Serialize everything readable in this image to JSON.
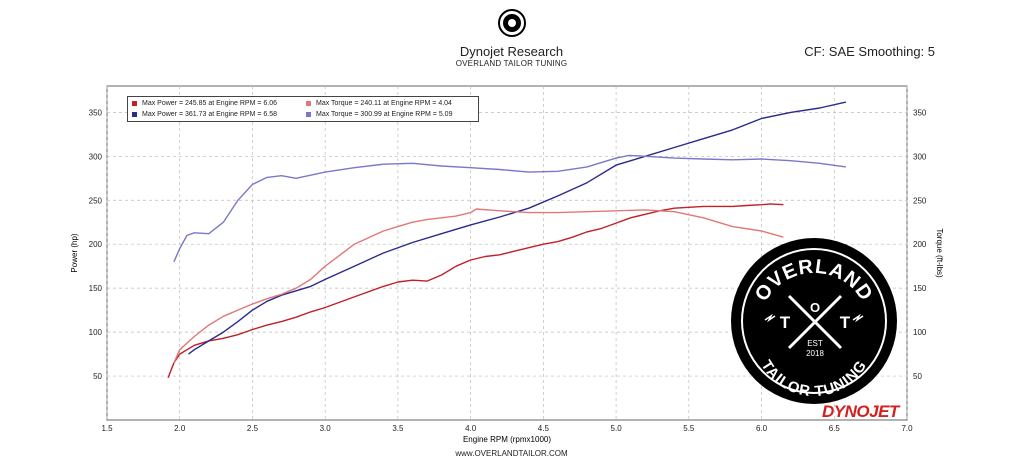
{
  "header": {
    "title": "Dynojet Research",
    "subtitle": "OVERLAND TAILOR TUNING",
    "cf_text": "CF: SAE Smoothing: 5"
  },
  "footer": {
    "url": "www.OVERLANDTAILOR.COM"
  },
  "brand": {
    "text": "DYNOJET"
  },
  "badge": {
    "top_text": "OVERLAND",
    "bottom_text": "TAILOR TUNING",
    "est_text": "EST",
    "year_text": "2018",
    "t_left": "T",
    "o_mid": "O",
    "t_right": "T",
    "colors": {
      "bg": "#000000",
      "ring": "#ffffff",
      "text": "#ffffff"
    }
  },
  "colors": {
    "power_run1": "#c0202a",
    "power_run2": "#2a2a8c",
    "torque_run1": "#e07878",
    "torque_run2": "#7a78c8",
    "grid": "#bbbbbb",
    "brand_red": "#d41f1f"
  },
  "legend": [
    {
      "text": "Max Power = 245.85 at Engine RPM = 6.06",
      "color": "#c0202a"
    },
    {
      "text": "Max Torque = 240.11 at Engine RPM = 4.04",
      "color": "#e07878"
    },
    {
      "text": "Max Power = 361.73 at Engine RPM = 6.58",
      "color": "#2a2a8c"
    },
    {
      "text": "Max Torque = 300.99 at Engine RPM = 5.09",
      "color": "#7a78c8"
    }
  ],
  "chart_data": {
    "type": "line",
    "title": "Dynojet Research",
    "xlabel": "Engine RPM (rpmx1000)",
    "ylabel": "Power (hp)",
    "y2label": "Torque (ft-lbs)",
    "xlim": [
      1.5,
      7.0
    ],
    "ylim": [
      0,
      380
    ],
    "y2lim": [
      0,
      380
    ],
    "xticks": [
      "1.5",
      "2.0",
      "2.5",
      "3.0",
      "3.5",
      "4.0",
      "4.5",
      "5.0",
      "5.5",
      "6.0",
      "6.5",
      "7.0"
    ],
    "yticks": [
      "50",
      "100",
      "150",
      "200",
      "250",
      "300",
      "350"
    ],
    "grid": true,
    "legend_position": "top-left",
    "series": [
      {
        "kind": "power",
        "axis": "left",
        "color": "#c0202a",
        "x": [
          1.92,
          1.96,
          2.0,
          2.1,
          2.2,
          2.3,
          2.4,
          2.5,
          2.6,
          2.7,
          2.8,
          2.9,
          3.0,
          3.2,
          3.4,
          3.5,
          3.6,
          3.7,
          3.8,
          3.9,
          4.0,
          4.1,
          4.2,
          4.3,
          4.4,
          4.5,
          4.6,
          4.7,
          4.8,
          4.9,
          5.0,
          5.1,
          5.2,
          5.3,
          5.4,
          5.5,
          5.6,
          5.7,
          5.8,
          5.9,
          6.0,
          6.06,
          6.15
        ],
        "y": [
          48,
          65,
          75,
          85,
          90,
          93,
          97,
          103,
          108,
          112,
          117,
          123,
          128,
          140,
          152,
          157,
          159,
          158,
          165,
          175,
          182,
          186,
          188,
          192,
          196,
          200,
          203,
          208,
          214,
          218,
          224,
          230,
          234,
          238,
          241,
          242,
          243,
          243,
          243,
          244,
          245,
          245.85,
          245
        ]
      },
      {
        "kind": "power",
        "axis": "left",
        "color": "#2a2a8c",
        "x": [
          2.06,
          2.1,
          2.2,
          2.3,
          2.4,
          2.5,
          2.6,
          2.7,
          2.8,
          2.9,
          3.0,
          3.2,
          3.4,
          3.6,
          3.8,
          4.0,
          4.2,
          4.4,
          4.6,
          4.8,
          5.0,
          5.2,
          5.4,
          5.6,
          5.8,
          6.0,
          6.2,
          6.4,
          6.58
        ],
        "y": [
          75,
          80,
          90,
          100,
          112,
          125,
          135,
          142,
          147,
          152,
          160,
          175,
          190,
          202,
          212,
          222,
          231,
          241,
          255,
          270,
          290,
          300,
          310,
          320,
          330,
          343,
          350,
          355,
          361.73
        ]
      },
      {
        "kind": "torque",
        "axis": "right",
        "color": "#e07878",
        "x": [
          1.96,
          2.0,
          2.1,
          2.2,
          2.3,
          2.4,
          2.5,
          2.6,
          2.7,
          2.8,
          2.9,
          3.0,
          3.2,
          3.4,
          3.5,
          3.6,
          3.7,
          3.8,
          3.9,
          4.0,
          4.04,
          4.2,
          4.4,
          4.6,
          4.8,
          5.0,
          5.2,
          5.4,
          5.6,
          5.8,
          6.0,
          6.15
        ],
        "y": [
          65,
          80,
          95,
          108,
          118,
          125,
          132,
          138,
          143,
          150,
          160,
          175,
          200,
          215,
          220,
          225,
          228,
          230,
          232,
          236,
          240.11,
          238,
          236,
          236,
          237,
          238,
          239,
          237,
          230,
          220,
          215,
          208
        ]
      },
      {
        "kind": "torque",
        "axis": "right",
        "color": "#7a78c8",
        "x": [
          1.96,
          2.0,
          2.05,
          2.1,
          2.2,
          2.3,
          2.4,
          2.5,
          2.6,
          2.7,
          2.8,
          3.0,
          3.2,
          3.4,
          3.6,
          3.8,
          4.0,
          4.2,
          4.4,
          4.6,
          4.8,
          5.0,
          5.09,
          5.2,
          5.4,
          5.6,
          5.8,
          6.0,
          6.2,
          6.4,
          6.58
        ],
        "y": [
          180,
          195,
          210,
          213,
          212,
          225,
          250,
          268,
          276,
          278,
          275,
          282,
          287,
          291,
          292,
          289,
          287,
          285,
          282,
          283,
          288,
          298,
          300.99,
          300,
          298,
          297,
          296,
          297,
          295,
          292,
          288
        ]
      }
    ]
  }
}
